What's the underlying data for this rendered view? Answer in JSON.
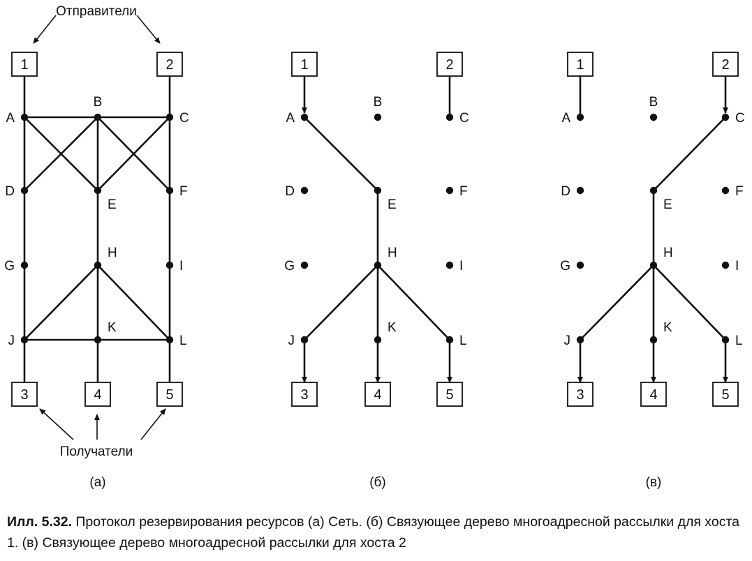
{
  "labels": {
    "senders": "Отправители",
    "receivers": "Получатели"
  },
  "panels": [
    {
      "id": "a",
      "subcaption": "(а)",
      "nodes": [
        "A",
        "B",
        "C",
        "D",
        "E",
        "F",
        "G",
        "H",
        "I",
        "J",
        "K",
        "L"
      ],
      "hosts": [
        "1",
        "2",
        "3",
        "4",
        "5"
      ],
      "edges": [
        [
          "1",
          "A"
        ],
        [
          "2",
          "C"
        ],
        [
          "A",
          "B"
        ],
        [
          "B",
          "C"
        ],
        [
          "A",
          "D"
        ],
        [
          "D",
          "G"
        ],
        [
          "G",
          "J"
        ],
        [
          "C",
          "F"
        ],
        [
          "F",
          "I"
        ],
        [
          "I",
          "L"
        ],
        [
          "B",
          "E"
        ],
        [
          "E",
          "H"
        ],
        [
          "H",
          "K"
        ],
        [
          "K",
          "4"
        ],
        [
          "J",
          "3"
        ],
        [
          "L",
          "5"
        ],
        [
          "A",
          "E"
        ],
        [
          "B",
          "D"
        ],
        [
          "B",
          "F"
        ],
        [
          "C",
          "E"
        ],
        [
          "H",
          "J"
        ],
        [
          "H",
          "L"
        ],
        [
          "J",
          "K"
        ],
        [
          "K",
          "L"
        ]
      ]
    },
    {
      "id": "b",
      "subcaption": "(б)",
      "nodes": [
        "A",
        "B",
        "C",
        "D",
        "E",
        "F",
        "G",
        "H",
        "I",
        "J",
        "K",
        "L"
      ],
      "hosts": [
        "1",
        "2",
        "3",
        "4",
        "5"
      ],
      "edges": [
        [
          "1",
          "A"
        ],
        [
          "2",
          "C"
        ],
        [
          "A",
          "E"
        ],
        [
          "E",
          "H"
        ],
        [
          "H",
          "J"
        ],
        [
          "H",
          "K"
        ],
        [
          "H",
          "L"
        ],
        [
          "J",
          "3"
        ],
        [
          "K",
          "4"
        ],
        [
          "L",
          "5"
        ]
      ],
      "arrows": [
        [
          "1",
          "A"
        ],
        [
          "J",
          "3"
        ],
        [
          "K",
          "4"
        ],
        [
          "L",
          "5"
        ]
      ]
    },
    {
      "id": "c",
      "subcaption": "(в)",
      "nodes": [
        "A",
        "B",
        "C",
        "D",
        "E",
        "F",
        "G",
        "H",
        "I",
        "J",
        "K",
        "L"
      ],
      "hosts": [
        "1",
        "2",
        "3",
        "4",
        "5"
      ],
      "edges": [
        [
          "1",
          "A"
        ],
        [
          "2",
          "C"
        ],
        [
          "C",
          "E"
        ],
        [
          "E",
          "H"
        ],
        [
          "H",
          "J"
        ],
        [
          "H",
          "K"
        ],
        [
          "H",
          "L"
        ],
        [
          "J",
          "3"
        ],
        [
          "K",
          "4"
        ],
        [
          "L",
          "5"
        ]
      ],
      "arrows": [
        [
          "2",
          "C"
        ],
        [
          "J",
          "3"
        ],
        [
          "K",
          "4"
        ],
        [
          "L",
          "5"
        ]
      ]
    }
  ],
  "caption": {
    "prefix": "Илл. 5.32.",
    "text": " Протокол резервирования ресурсов (а) Сеть. (б) Связующее дерево многоадресной рассылки для хоста 1. (в) Связующее дерево многоадресной рассылки для хоста 2"
  }
}
